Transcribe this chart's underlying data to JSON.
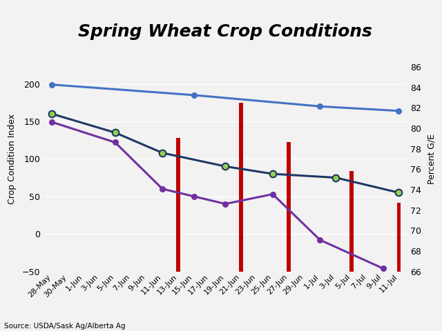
{
  "title": "Spring Wheat Crop Conditions",
  "ylabel_left": "Crop Condition Index",
  "ylabel_right": "Percent G/E",
  "source": "Source: USDA/Sask Ag/Alberta Ag",
  "categories": [
    "28-May",
    "30-May",
    "1-Jun",
    "3-Jun",
    "5-Jun",
    "7-Jun",
    "9-Jun",
    "11-Jun",
    "13-Jun",
    "15-Jun",
    "17-Jun",
    "19-Jun",
    "21-Jun",
    "23-Jun",
    "25-Jun",
    "27-Jun",
    "29-Jun",
    "1-Jul",
    "3-Jul",
    "5-Jul",
    "7-Jul",
    "9-Jul",
    "11-Jul"
  ],
  "sask_sw": [
    199,
    null,
    null,
    null,
    null,
    null,
    null,
    null,
    null,
    185,
    null,
    null,
    null,
    null,
    null,
    null,
    null,
    170,
    null,
    null,
    null,
    null,
    164
  ],
  "nd_sw": [
    160,
    null,
    null,
    null,
    135,
    null,
    null,
    108,
    null,
    null,
    null,
    90,
    null,
    null,
    80,
    null,
    null,
    null,
    75,
    null,
    null,
    null,
    55
  ],
  "mt_sw": [
    149,
    null,
    null,
    null,
    122,
    null,
    null,
    60,
    null,
    50,
    null,
    40,
    null,
    null,
    53,
    null,
    null,
    -8,
    null,
    null,
    null,
    -46,
    null
  ],
  "ab_sw_bars": {
    "13-Jun": 128,
    "21-Jun": 175,
    "27-Jun": 122,
    "5-Jul": 84,
    "11-Jul": 42
  },
  "ylim_left": [
    -50,
    250
  ],
  "ylim_right": [
    66,
    88
  ],
  "yticks_left": [
    -50,
    0,
    50,
    100,
    150,
    200
  ],
  "yticks_right_labels": [
    66,
    68,
    70,
    72,
    74,
    76,
    78,
    80,
    82,
    84,
    86
  ],
  "sask_color": "#4472C4",
  "nd_color": "#1F3864",
  "nd_marker_color": "#92D050",
  "mt_color": "#7030A0",
  "ab_color": "#C00000",
  "background_color": "#F2F2F2",
  "grid_color": "#FFFFFF",
  "title_fontsize": 18,
  "axis_fontsize": 8,
  "bar_width": 0.25
}
